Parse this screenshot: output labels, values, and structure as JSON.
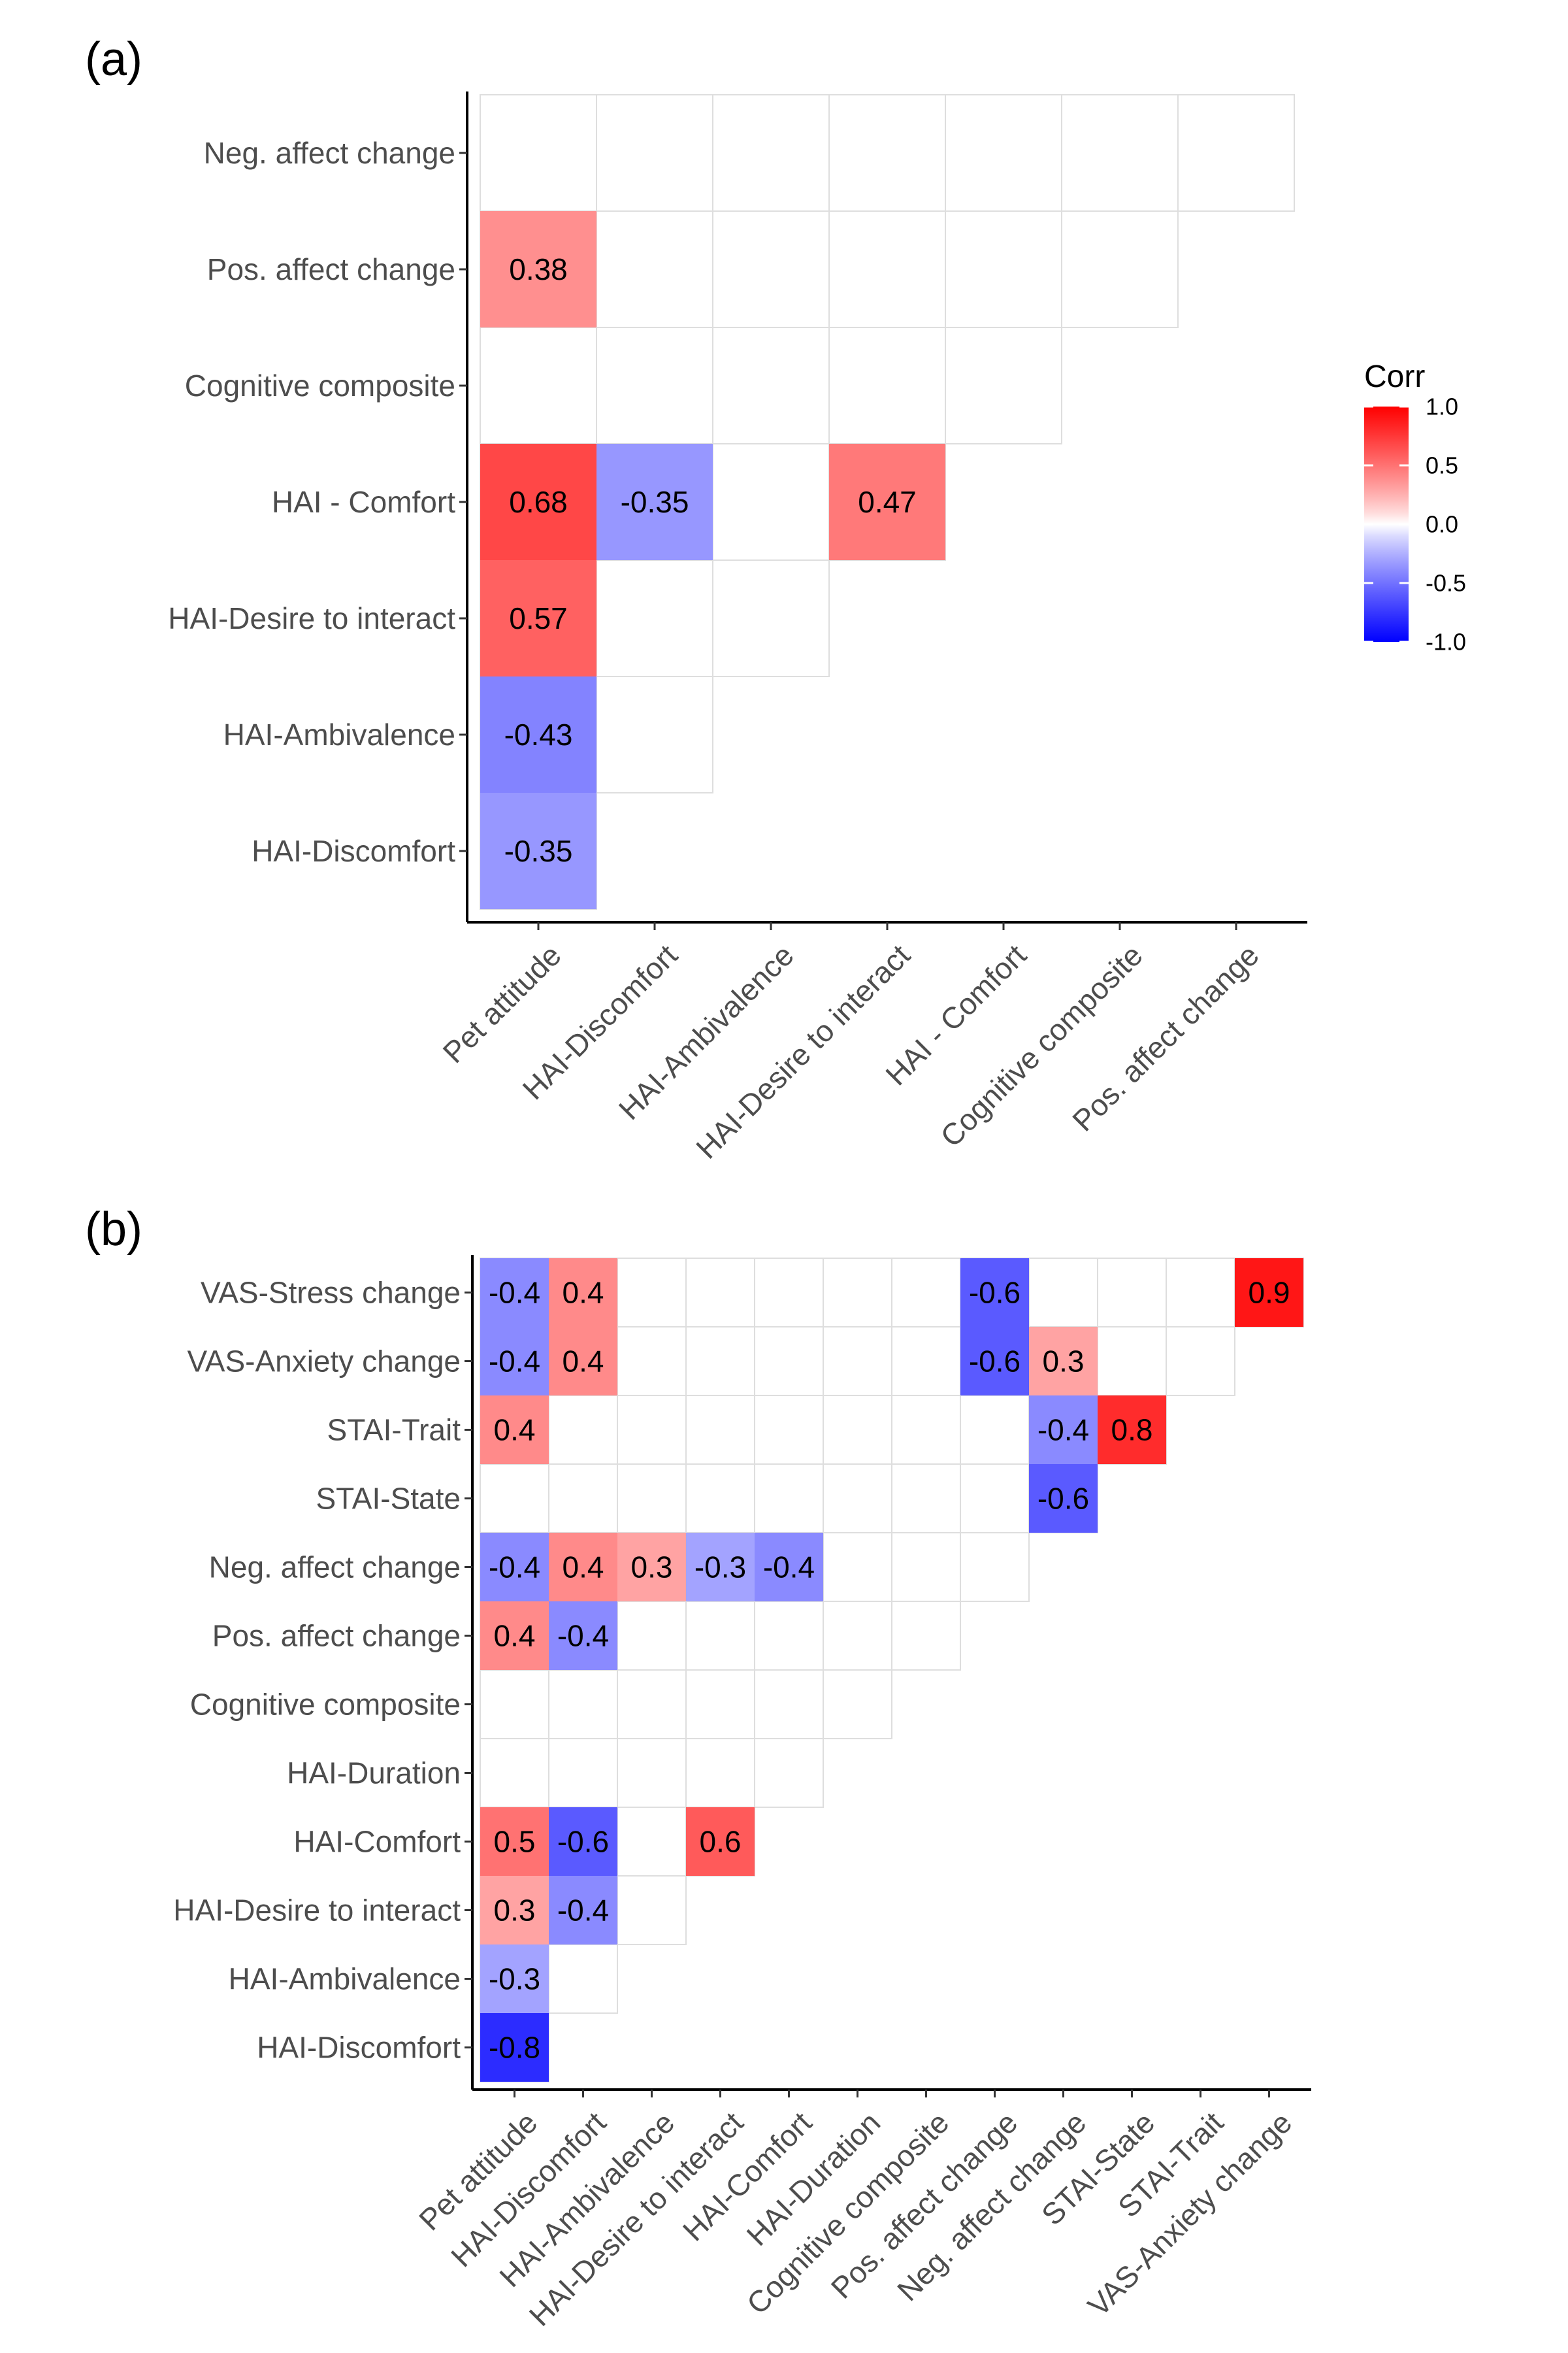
{
  "chart_data": [
    {
      "type": "heatmap",
      "panel_label": "(a)",
      "x_categories": [
        "Pet attitude",
        "HAI-Discomfort",
        "HAI-Ambivalence",
        "HAI-Desire to interact",
        "HAI - Comfort",
        "Cognitive composite",
        "Pos. affect change"
      ],
      "y_categories": [
        "Neg. affect change",
        "Pos. affect change",
        "Cognitive composite",
        "HAI - Comfort",
        "HAI-Desire to interact",
        "HAI-Ambivalence",
        "HAI-Discomfort"
      ],
      "cells": [
        {
          "x": "Pet attitude",
          "y": "Pos. affect change",
          "value": 0.38,
          "label": "0.38"
        },
        {
          "x": "Pet attitude",
          "y": "HAI - Comfort",
          "value": 0.68,
          "label": "0.68"
        },
        {
          "x": "HAI-Discomfort",
          "y": "HAI - Comfort",
          "value": -0.35,
          "label": "-0.35"
        },
        {
          "x": "HAI-Desire to interact",
          "y": "HAI - Comfort",
          "value": 0.47,
          "label": "0.47"
        },
        {
          "x": "Pet attitude",
          "y": "HAI-Desire to interact",
          "value": 0.57,
          "label": "0.57"
        },
        {
          "x": "Pet attitude",
          "y": "HAI-Ambivalence",
          "value": -0.43,
          "label": "-0.43"
        },
        {
          "x": "Pet attitude",
          "y": "HAI-Discomfort",
          "value": -0.35,
          "label": "-0.35"
        }
      ]
    },
    {
      "type": "heatmap",
      "panel_label": "(b)",
      "x_categories": [
        "Pet attitude",
        "HAI-Discomfort",
        "HAI-Ambivalence",
        "HAI-Desire to interact",
        "HAI-Comfort",
        "HAI-Duration",
        "Cognitive composite",
        "Pos. affect change",
        "Neg. affect change",
        "STAI-State",
        "STAI-Trait",
        "VAS-Anxiety change"
      ],
      "y_categories": [
        "VAS-Stress change",
        "VAS-Anxiety change",
        "STAI-Trait",
        "STAI-State",
        "Neg. affect change",
        "Pos. affect change",
        "Cognitive composite",
        "HAI-Duration",
        "HAI-Comfort",
        "HAI-Desire to interact",
        "HAI-Ambivalence",
        "HAI-Discomfort"
      ],
      "cells": [
        {
          "x": "Pet attitude",
          "y": "VAS-Stress change",
          "value": -0.4,
          "label": "-0.4"
        },
        {
          "x": "HAI-Discomfort",
          "y": "VAS-Stress change",
          "value": 0.4,
          "label": "0.4"
        },
        {
          "x": "Pos. affect change",
          "y": "VAS-Stress change",
          "value": -0.6,
          "label": "-0.6"
        },
        {
          "x": "VAS-Anxiety change",
          "y": "VAS-Stress change",
          "value": 0.9,
          "label": "0.9"
        },
        {
          "x": "Pet attitude",
          "y": "VAS-Anxiety change",
          "value": -0.4,
          "label": "-0.4"
        },
        {
          "x": "HAI-Discomfort",
          "y": "VAS-Anxiety change",
          "value": 0.4,
          "label": "0.4"
        },
        {
          "x": "Pos. affect change",
          "y": "VAS-Anxiety change",
          "value": -0.6,
          "label": "-0.6"
        },
        {
          "x": "Neg. affect change",
          "y": "VAS-Anxiety change",
          "value": 0.3,
          "label": "0.3"
        },
        {
          "x": "Pet attitude",
          "y": "STAI-Trait",
          "value": 0.4,
          "label": "0.4"
        },
        {
          "x": "Neg. affect change",
          "y": "STAI-Trait",
          "value": -0.4,
          "label": "-0.4"
        },
        {
          "x": "STAI-State",
          "y": "STAI-Trait",
          "value": 0.8,
          "label": "0.8"
        },
        {
          "x": "Neg. affect change",
          "y": "STAI-State",
          "value": -0.6,
          "label": "-0.6"
        },
        {
          "x": "Pet attitude",
          "y": "Neg. affect change",
          "value": -0.4,
          "label": "-0.4"
        },
        {
          "x": "HAI-Discomfort",
          "y": "Neg. affect change",
          "value": 0.4,
          "label": "0.4"
        },
        {
          "x": "HAI-Ambivalence",
          "y": "Neg. affect change",
          "value": 0.3,
          "label": "0.3"
        },
        {
          "x": "HAI-Desire to interact",
          "y": "Neg. affect change",
          "value": -0.3,
          "label": "-0.3"
        },
        {
          "x": "HAI-Comfort",
          "y": "Neg. affect change",
          "value": -0.4,
          "label": "-0.4"
        },
        {
          "x": "Pet attitude",
          "y": "Pos. affect change",
          "value": 0.4,
          "label": "0.4"
        },
        {
          "x": "HAI-Discomfort",
          "y": "Pos. affect change",
          "value": -0.4,
          "label": "-0.4"
        },
        {
          "x": "Pet attitude",
          "y": "HAI-Comfort",
          "value": 0.5,
          "label": "0.5"
        },
        {
          "x": "HAI-Discomfort",
          "y": "HAI-Comfort",
          "value": -0.6,
          "label": "-0.6"
        },
        {
          "x": "HAI-Desire to interact",
          "y": "HAI-Comfort",
          "value": 0.6,
          "label": "0.6"
        },
        {
          "x": "Pet attitude",
          "y": "HAI-Desire to interact",
          "value": 0.3,
          "label": "0.3"
        },
        {
          "x": "HAI-Discomfort",
          "y": "HAI-Desire to interact",
          "value": -0.4,
          "label": "-0.4"
        },
        {
          "x": "Pet attitude",
          "y": "HAI-Ambivalence",
          "value": -0.3,
          "label": "-0.3"
        },
        {
          "x": "Pet attitude",
          "y": "HAI-Discomfort",
          "value": -0.8,
          "label": "-0.8"
        }
      ]
    }
  ],
  "legend": {
    "title": "Corr",
    "ticks": [
      "1.0",
      "0.5",
      "0.0",
      "-0.5",
      "-1.0"
    ],
    "tick_values": [
      1.0,
      0.5,
      0.0,
      -0.5,
      -1.0
    ],
    "range": [
      -1,
      1
    ],
    "colors": {
      "low": "#0000ff",
      "mid": "#ffffff",
      "high": "#ff0000"
    }
  }
}
